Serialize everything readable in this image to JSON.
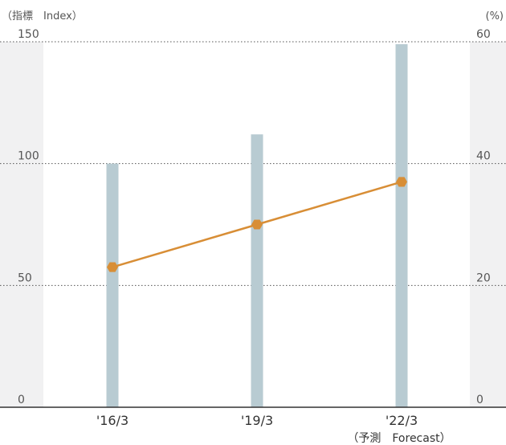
{
  "chart_data": {
    "type": "bar+line",
    "categories": [
      "'16/3",
      "'19/3",
      "'22/3"
    ],
    "category_note": "（予測　Forecast）",
    "left_axis": {
      "label": "（指標　Index）",
      "ticks": [
        "0",
        "50",
        "100",
        "150"
      ],
      "range": [
        0,
        150
      ]
    },
    "right_axis": {
      "label": "(%)",
      "ticks": [
        "0",
        "20",
        "40",
        "60"
      ],
      "range": [
        0,
        60
      ]
    },
    "bar_series": {
      "axis": "left",
      "values": [
        100,
        112,
        149
      ],
      "color": "#b8cbd2"
    },
    "line_series": {
      "axis": "right",
      "values": [
        23.0,
        30.0,
        37.0
      ],
      "color": "#d88e36"
    },
    "grid": "dotted horizontal"
  }
}
